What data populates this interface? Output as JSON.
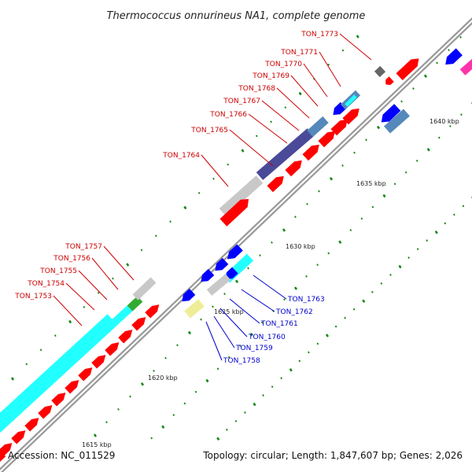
{
  "title": "Thermococcus onnurineus NA1, complete genome",
  "accession_text": "Accession: NC_011529",
  "summary_text": "Topology: circular; Length: 1,847,607 bp; Genes: 2,026",
  "scale_labels": [
    "1615 kbp",
    "1620 kbp",
    "1625 kbp",
    "1630 kbp",
    "1635 kbp",
    "1640 kbp"
  ],
  "gene_labels_upper": [
    "TON_1773",
    "TON_1771",
    "TON_1770",
    "TON_1769",
    "TON_1768",
    "TON_1767",
    "TON_1766",
    "TON_1765",
    "TON_1764"
  ],
  "gene_labels_left": [
    "TON_1757",
    "TON_1756",
    "TON_1755",
    "TON_1754",
    "TON_1753"
  ],
  "gene_labels_lower": [
    "TON_1763",
    "TON_1762",
    "TON_1761",
    "TON_1760",
    "TON_1759",
    "TON_1758"
  ],
  "colors": {
    "forward_cds": "#ff0000",
    "reverse_cds": "#0000ff",
    "upper_label": "#cc0000",
    "lower_label": "#0000cc",
    "tick": "#118811",
    "backbone": "#999999",
    "cog_cyan": "#22ffff",
    "cog_gray": "#c8c8c8",
    "cog_indigo": "#4a4a99",
    "cog_steel": "#5588bb",
    "cog_green": "#33aa33",
    "cog_khaki": "#eeee99",
    "cog_dark": "#666666",
    "cog_pink": "#ff33aa"
  }
}
